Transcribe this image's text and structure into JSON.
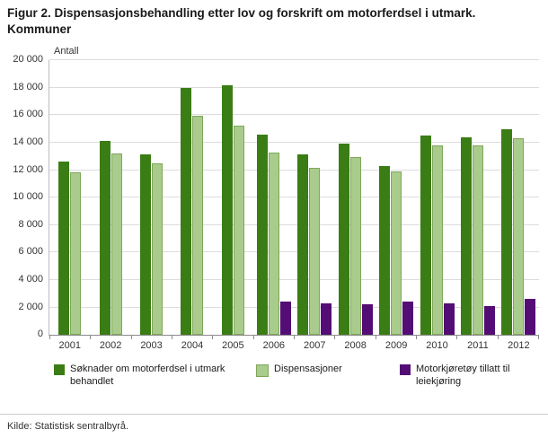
{
  "header": {
    "title_line1": "Figur 2. Dispensasjonsbehandling etter lov og forskrift om motorferdsel i utmark.",
    "title_line2": "Kommuner"
  },
  "chart_data": {
    "type": "bar",
    "title": "Figur 2. Dispensasjonsbehandling etter lov og forskrift om motorferdsel i utmark. Kommuner",
    "ylabel": "Antall",
    "xlabel": "",
    "ylim": [
      0,
      20000
    ],
    "ytick_step": 2000,
    "grid": true,
    "legend_position": "bottom",
    "categories": [
      "2001",
      "2002",
      "2003",
      "2004",
      "2005",
      "2006",
      "2007",
      "2008",
      "2009",
      "2010",
      "2011",
      "2012"
    ],
    "series": [
      {
        "name": "Søknader om motorferdsel i utmark behandlet",
        "color": "#3a7d15",
        "values": [
          12600,
          14150,
          13150,
          18000,
          18200,
          14600,
          13150,
          13950,
          12300,
          14500,
          14400,
          15000
        ]
      },
      {
        "name": "Dispensasjoner",
        "color": "#a9cc8c",
        "border": "#7fa65a",
        "values": [
          11850,
          13200,
          12500,
          15950,
          15250,
          13300,
          12150,
          12950,
          11900,
          13800,
          13800,
          14300
        ]
      },
      {
        "name": "Motorkjøretøy tillatt til leiekjøring",
        "color": "#530d74",
        "values": [
          null,
          null,
          null,
          null,
          null,
          2400,
          2300,
          2200,
          2400,
          2300,
          2100,
          2600
        ]
      }
    ]
  },
  "footer": {
    "source": "Kilde: Statistisk sentralbyrå."
  }
}
